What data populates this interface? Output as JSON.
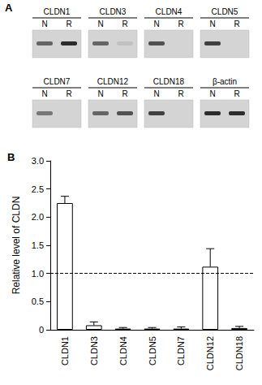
{
  "gel": {
    "panel_label": "A",
    "lanes": [
      "N",
      "R"
    ],
    "genes": [
      {
        "name": "CLDN1",
        "bands": [
          0.6,
          0.9
        ]
      },
      {
        "name": "CLDN3",
        "bands": [
          0.6,
          0.1
        ]
      },
      {
        "name": "CLDN4",
        "bands": [
          0.7,
          0
        ]
      },
      {
        "name": "CLDN5",
        "bands": [
          0.8,
          0
        ]
      },
      {
        "name": "CLDN7",
        "bands": [
          0.5,
          0
        ]
      },
      {
        "name": "CLDN12",
        "bands": [
          0.6,
          0.7
        ]
      },
      {
        "name": "CLDN18",
        "bands": [
          0.8,
          0
        ]
      },
      {
        "name": "β-actin",
        "bands": [
          0.9,
          0.9
        ]
      }
    ]
  },
  "chart_data": {
    "type": "bar",
    "panel_label": "B",
    "y_label": "Relative level of CLDN",
    "categories": [
      "CLDN1",
      "CLDN3",
      "CLDN4",
      "CLDN5",
      "CLDN7",
      "CLDN12",
      "CLDN18"
    ],
    "values": [
      2.25,
      0.08,
      0.02,
      0.02,
      0.02,
      1.12,
      0.03
    ],
    "errors": [
      0.12,
      0.06,
      0.02,
      0.02,
      0.03,
      0.32,
      0.03
    ],
    "color": "#ffffff",
    "reference_line": 1,
    "ylim": [
      0,
      3
    ],
    "yticks": [
      0,
      {
        "value": 0.5,
        "label": "0.5"
      },
      {
        "value": 1,
        "label": "1.0"
      },
      {
        "value": 1.5,
        "label": "1.5"
      },
      {
        "value": 2,
        "label": "2.0"
      },
      {
        "value": 2.5,
        "label": "2.5"
      },
      {
        "value": 3,
        "label": "3.0"
      }
    ],
    "grid": false
  }
}
